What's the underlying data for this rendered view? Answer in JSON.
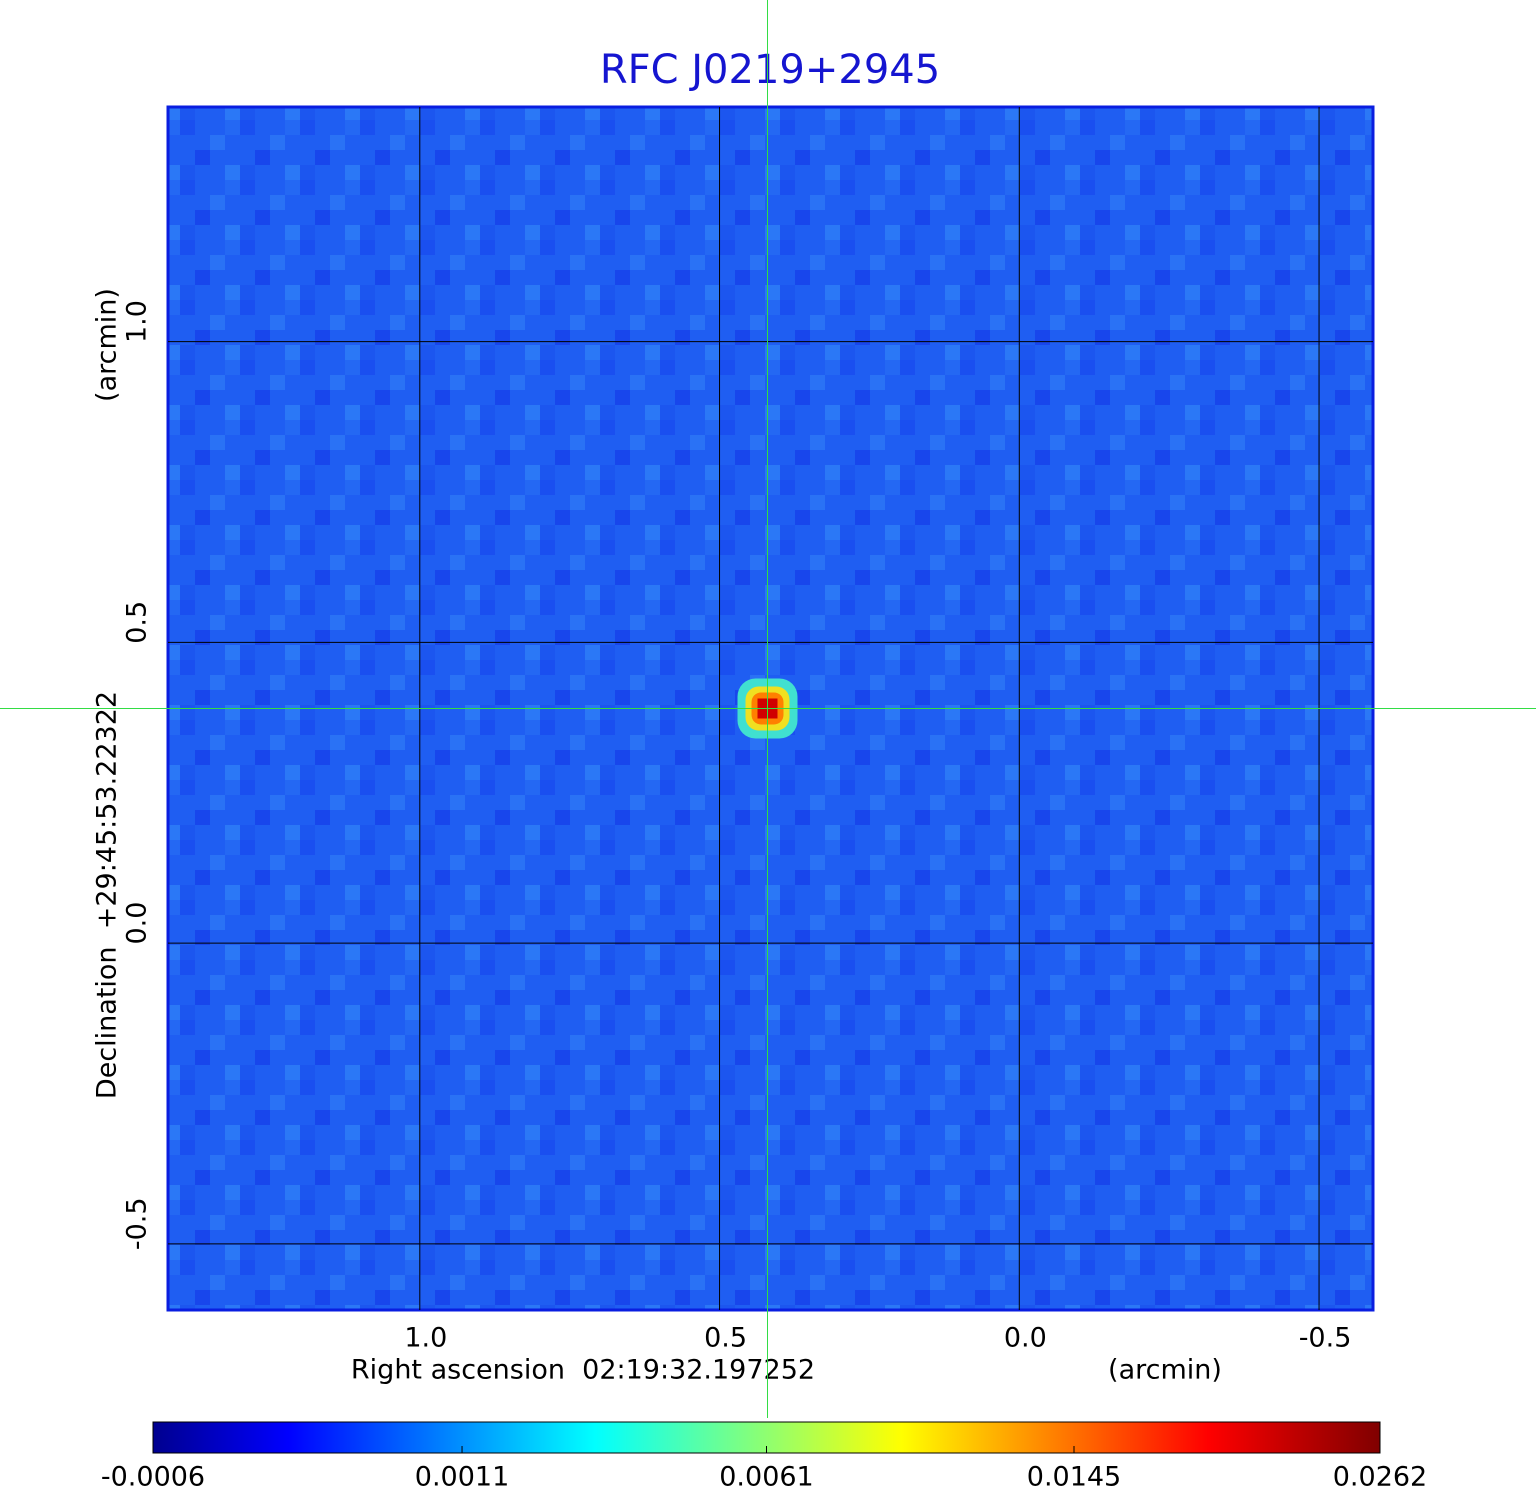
{
  "chart_data": {
    "type": "image",
    "title": "RFC J0219+2945",
    "xlabel": "Right ascension  02:19:32.197252",
    "xlabel_unit": "(arcmin)",
    "ylabel": "Declination  +29:45:53.22322",
    "ylabel_unit": "(arcmin)",
    "xlim": [
      1.42,
      -0.59
    ],
    "ylim": [
      -0.61,
      1.39
    ],
    "xticks": [
      {
        "value": 1,
        "label": "1.0"
      },
      0.5,
      {
        "value": 0,
        "label": "0.0"
      },
      -0.5
    ],
    "yticks": [
      {
        "value": 1,
        "label": "1.0"
      },
      0.5,
      {
        "value": 0,
        "label": "0.0"
      },
      -0.5
    ],
    "grid": true,
    "colormap": "jet",
    "colorbar_scale": "sqrt",
    "clim": [
      -0.0006,
      0.0262
    ],
    "colorbar_ticks": [
      -0.0006,
      0.0011,
      0.0061,
      0.0145,
      0.0262
    ],
    "source": {
      "x": 0.42,
      "y": 0.39,
      "value": 0.0262
    }
  }
}
